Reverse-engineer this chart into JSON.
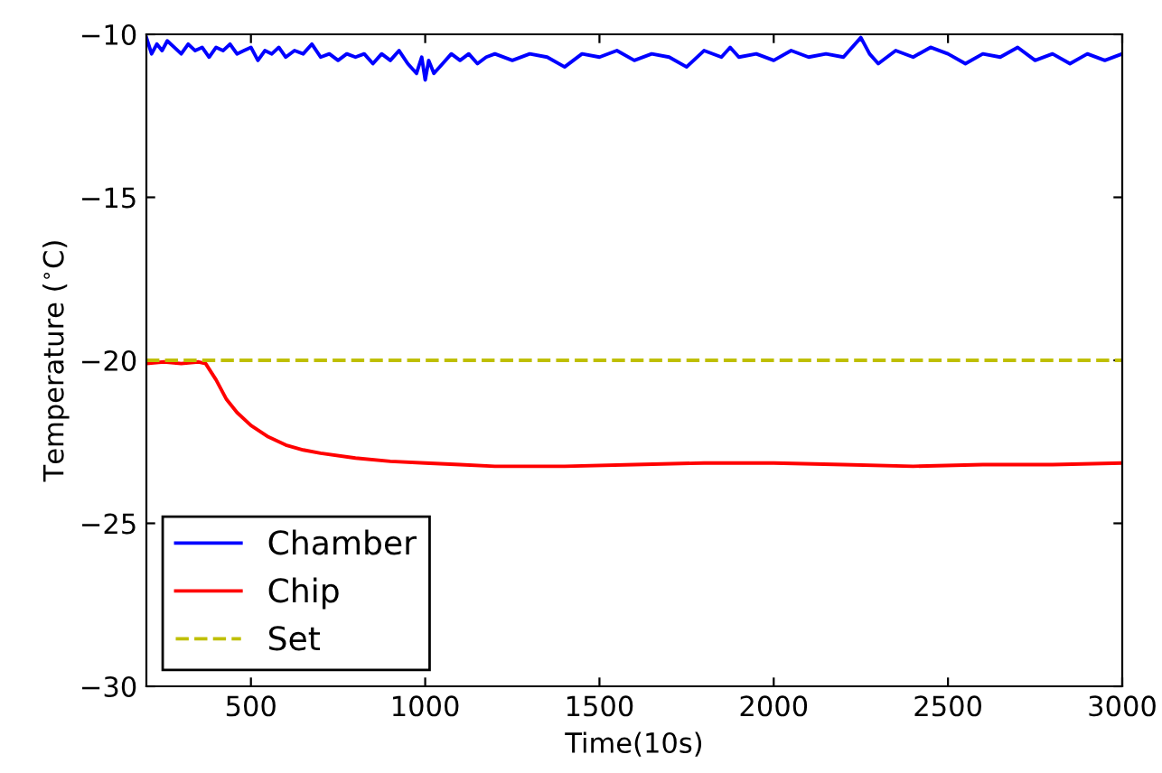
{
  "chart_data": {
    "type": "line",
    "xlabel": "Time(10s)",
    "ylabel": "Temperature ($^{∘}$C)",
    "xlim": [
      200,
      3000
    ],
    "xticks": [
      500,
      1000,
      1500,
      2000,
      2500,
      3000
    ],
    "ylim": [
      -30,
      -10
    ],
    "yticks": [
      -30,
      -25,
      -20,
      -15,
      -10
    ],
    "grid": false,
    "legend": "bottom left",
    "marker": "none",
    "series": [
      {
        "name": "Chamber",
        "color": "#0000ff",
        "line_style": "solid",
        "x": [
          200,
          215,
          230,
          245,
          260,
          280,
          300,
          320,
          340,
          360,
          380,
          400,
          420,
          440,
          460,
          480,
          500,
          520,
          540,
          560,
          580,
          600,
          625,
          650,
          675,
          700,
          725,
          750,
          775,
          800,
          825,
          850,
          875,
          900,
          925,
          950,
          975,
          990,
          1000,
          1010,
          1025,
          1050,
          1075,
          1100,
          1125,
          1150,
          1175,
          1200,
          1250,
          1300,
          1350,
          1400,
          1450,
          1500,
          1550,
          1600,
          1650,
          1700,
          1750,
          1800,
          1850,
          1875,
          1900,
          1950,
          2000,
          2050,
          2100,
          2150,
          2200,
          2250,
          2275,
          2300,
          2350,
          2400,
          2450,
          2500,
          2550,
          2600,
          2650,
          2700,
          2750,
          2800,
          2850,
          2900,
          2950,
          3000
        ],
        "values": [
          -10.1,
          -10.6,
          -10.3,
          -10.5,
          -10.2,
          -10.4,
          -10.6,
          -10.3,
          -10.5,
          -10.4,
          -10.7,
          -10.4,
          -10.5,
          -10.3,
          -10.6,
          -10.5,
          -10.4,
          -10.8,
          -10.5,
          -10.6,
          -10.4,
          -10.7,
          -10.5,
          -10.6,
          -10.3,
          -10.7,
          -10.6,
          -10.8,
          -10.6,
          -10.7,
          -10.6,
          -10.9,
          -10.6,
          -10.8,
          -10.5,
          -10.9,
          -11.2,
          -10.7,
          -11.4,
          -10.8,
          -11.2,
          -10.9,
          -10.6,
          -10.8,
          -10.6,
          -10.9,
          -10.7,
          -10.6,
          -10.8,
          -10.6,
          -10.7,
          -11.0,
          -10.6,
          -10.7,
          -10.5,
          -10.8,
          -10.6,
          -10.7,
          -11.0,
          -10.5,
          -10.7,
          -10.4,
          -10.7,
          -10.6,
          -10.8,
          -10.5,
          -10.7,
          -10.6,
          -10.7,
          -10.1,
          -10.6,
          -10.9,
          -10.5,
          -10.7,
          -10.4,
          -10.6,
          -10.9,
          -10.6,
          -10.7,
          -10.4,
          -10.8,
          -10.6,
          -10.9,
          -10.6,
          -10.8,
          -10.6
        ]
      },
      {
        "name": "Chip",
        "color": "#ff0000",
        "line_style": "solid",
        "x": [
          200,
          250,
          300,
          350,
          370,
          400,
          430,
          460,
          500,
          550,
          600,
          650,
          700,
          800,
          900,
          1000,
          1100,
          1200,
          1400,
          1600,
          1800,
          2000,
          2200,
          2400,
          2600,
          2800,
          3000
        ],
        "values": [
          -20.1,
          -20.05,
          -20.1,
          -20.05,
          -20.1,
          -20.6,
          -21.2,
          -21.6,
          -22.0,
          -22.35,
          -22.6,
          -22.75,
          -22.85,
          -23.0,
          -23.1,
          -23.15,
          -23.2,
          -23.25,
          -23.25,
          -23.2,
          -23.15,
          -23.15,
          -23.2,
          -23.25,
          -23.2,
          -23.2,
          -23.15
        ]
      },
      {
        "name": "Set",
        "color": "#bfbf00",
        "line_style": "dashed",
        "x": [
          200,
          3000
        ],
        "values": [
          -20,
          -20
        ]
      }
    ]
  }
}
